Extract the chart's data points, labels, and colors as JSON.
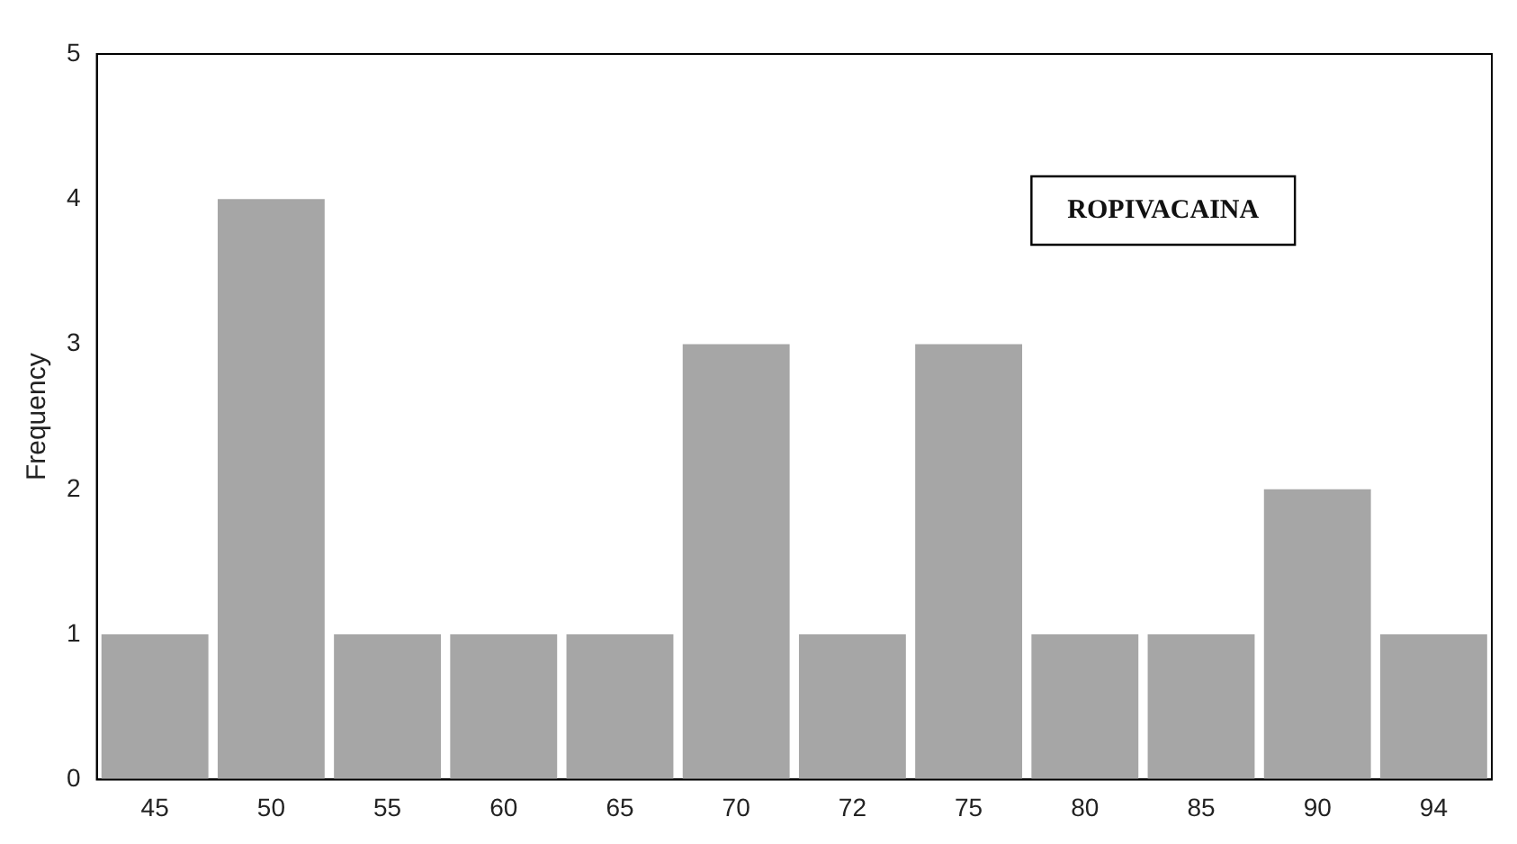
{
  "chart_data": {
    "type": "bar",
    "ylabel": "Frequency",
    "annotations": [
      "ROPIVACAINA"
    ],
    "categories": [
      "45",
      "50",
      "55",
      "60",
      "65",
      "70",
      "72",
      "75",
      "80",
      "85",
      "90",
      "94"
    ],
    "values": [
      1,
      4,
      1,
      1,
      1,
      3,
      1,
      3,
      1,
      1,
      2,
      1
    ],
    "color": "#a6a6a6",
    "ylim": [
      0,
      5
    ],
    "yticks": [
      0,
      1,
      2,
      3,
      4,
      5
    ],
    "grid": false,
    "legend": false
  }
}
